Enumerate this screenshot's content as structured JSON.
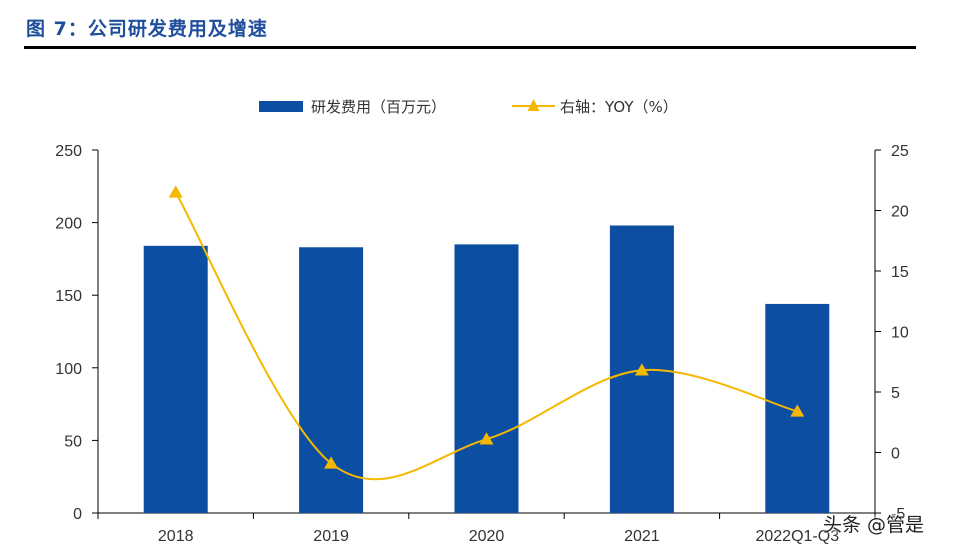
{
  "page": {
    "figure_title": "图 7：公司研发费用及增速",
    "watermark": "头条 @管是"
  },
  "colors": {
    "bar": "#0b4ea2",
    "line": "#f5b800",
    "title": "#1f4e9c",
    "axis": "#000000",
    "text": "#333333"
  },
  "chart_data": {
    "type": "bar",
    "title": "公司研发费用及增速",
    "categories": [
      "2018",
      "2019",
      "2020",
      "2021",
      "2022Q1-Q3"
    ],
    "category_labels_shown": [
      "2018",
      "2019",
      "2020",
      "2021",
      "2022Q1-Q3"
    ],
    "series": [
      {
        "name": "研发费用（百万元）",
        "kind": "bar",
        "axis": "left",
        "values": [
          184,
          183,
          185,
          198,
          144
        ]
      },
      {
        "name": "右轴：YOY（%）",
        "kind": "line",
        "axis": "right",
        "smooth": true,
        "marker": "triangle",
        "values": [
          21.5,
          -0.9,
          1.1,
          6.8,
          3.4
        ]
      }
    ],
    "y_left": {
      "min": 0,
      "max": 250,
      "ticks": [
        0,
        50,
        100,
        150,
        200,
        250
      ]
    },
    "y_right": {
      "min": -5,
      "max": 25,
      "ticks": [
        -5,
        0,
        5,
        10,
        15,
        20,
        25
      ]
    },
    "legend": [
      "研发费用（百万元）",
      "右轴：YOY（%）"
    ],
    "legend_position": "top-center",
    "grid": false
  }
}
